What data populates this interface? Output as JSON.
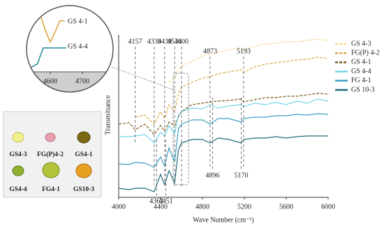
{
  "chart_data": [
    {
      "type": "line",
      "y_label": "Transmittance",
      "x_label": "Wave Number (cm⁻¹)",
      "xlim": [
        4000,
        6000
      ],
      "xticks": [
        4000,
        4400,
        4800,
        5200,
        5600,
        6000
      ],
      "ylim": [
        0,
        230
      ],
      "x": [
        4000,
        4100,
        4157,
        4250,
        4339,
        4400,
        4439,
        4480,
        4534,
        4570,
        4600,
        4700,
        4800,
        4873,
        4950,
        5050,
        5170,
        5193,
        5300,
        5400,
        5500,
        5600,
        5700,
        5800,
        5900,
        6000
      ],
      "series": [
        {
          "name": "GS 4-3",
          "color": "#f6d98e",
          "linestyle": "dashed",
          "values": [
            null,
            null,
            null,
            null,
            null,
            null,
            null,
            165,
            171,
            183,
            188,
            195,
            203,
            205,
            208,
            211,
            215,
            211,
            217,
            220,
            221,
            223,
            223,
            225,
            227,
            225
          ]
        },
        {
          "name": "FG(P) 4-2",
          "color": "#d9a84a",
          "linestyle": "dashed",
          "values": [
            null,
            null,
            115,
            118,
            105,
            123,
            113,
            133,
            123,
            148,
            158,
            165,
            171,
            173,
            177,
            180,
            183,
            179,
            187,
            191,
            193,
            195,
            197,
            198,
            201,
            199
          ]
        },
        {
          "name": "GS 4-1",
          "color": "#7a5a1a",
          "linestyle": "dashed",
          "values": [
            105,
            107,
            97,
            105,
            90,
            103,
            95,
            108,
            103,
            115,
            123,
            133,
            135,
            137,
            138,
            139,
            141,
            137,
            140,
            143,
            143,
            145,
            145,
            147,
            149,
            148
          ]
        },
        {
          "name": "GS 4-4",
          "color": "#72d6ea",
          "linestyle": "solid",
          "values": [
            87,
            87,
            88,
            90,
            78,
            93,
            88,
            103,
            91,
            118,
            123,
            128,
            127,
            133,
            128,
            131,
            133,
            130,
            135,
            133,
            136,
            133,
            138,
            135,
            141,
            138
          ]
        },
        {
          "name": "FG 4-1",
          "color": "#3a9fc2",
          "linestyle": "solid",
          "values": [
            48,
            47,
            50,
            49,
            43,
            58,
            45,
            71,
            51,
            98,
            105,
            111,
            111,
            105,
            113,
            113,
            108,
            113,
            115,
            115,
            117,
            117,
            119,
            118,
            120,
            119
          ]
        },
        {
          "name": "GS 10-3",
          "color": "#1f6b7a",
          "linestyle": "solid",
          "values": [
            13,
            11,
            13,
            13,
            8,
            33,
            18,
            38,
            21,
            68,
            78,
            83,
            83,
            78,
            85,
            83,
            78,
            83,
            85,
            85,
            87,
            85,
            87,
            88,
            88,
            88
          ]
        }
      ],
      "peaks_top": [
        4157,
        4339,
        4439,
        4534,
        4600,
        4873,
        5193
      ],
      "peaks_bottom": [
        4362,
        4451,
        4896,
        5170
      ],
      "legend": "upper right"
    },
    {
      "type": "line",
      "xlim": [
        4530,
        4790
      ],
      "xticks": [
        4600,
        4700
      ],
      "ylim": [
        0,
        10
      ],
      "series": [
        {
          "name": "GS 4-1",
          "color": "#d9a030",
          "x": [
            4560,
            4585,
            4600,
            4615,
            4630,
            4645
          ],
          "values": [
            10,
            6.2,
            4.5,
            6.0,
            7.7,
            7.7
          ]
        },
        {
          "name": "GS 4-4",
          "color": "#1f8a9a",
          "x": [
            4530,
            4560,
            4578,
            4650
          ],
          "values": [
            0.4,
            1.2,
            3.6,
            3.6
          ]
        }
      ]
    }
  ],
  "gem_panel": {
    "labels": [
      "GS4-3",
      "FG(P)4-2",
      "GS4-1",
      "GS4-4",
      "FG4-1",
      "GS10-3"
    ]
  }
}
